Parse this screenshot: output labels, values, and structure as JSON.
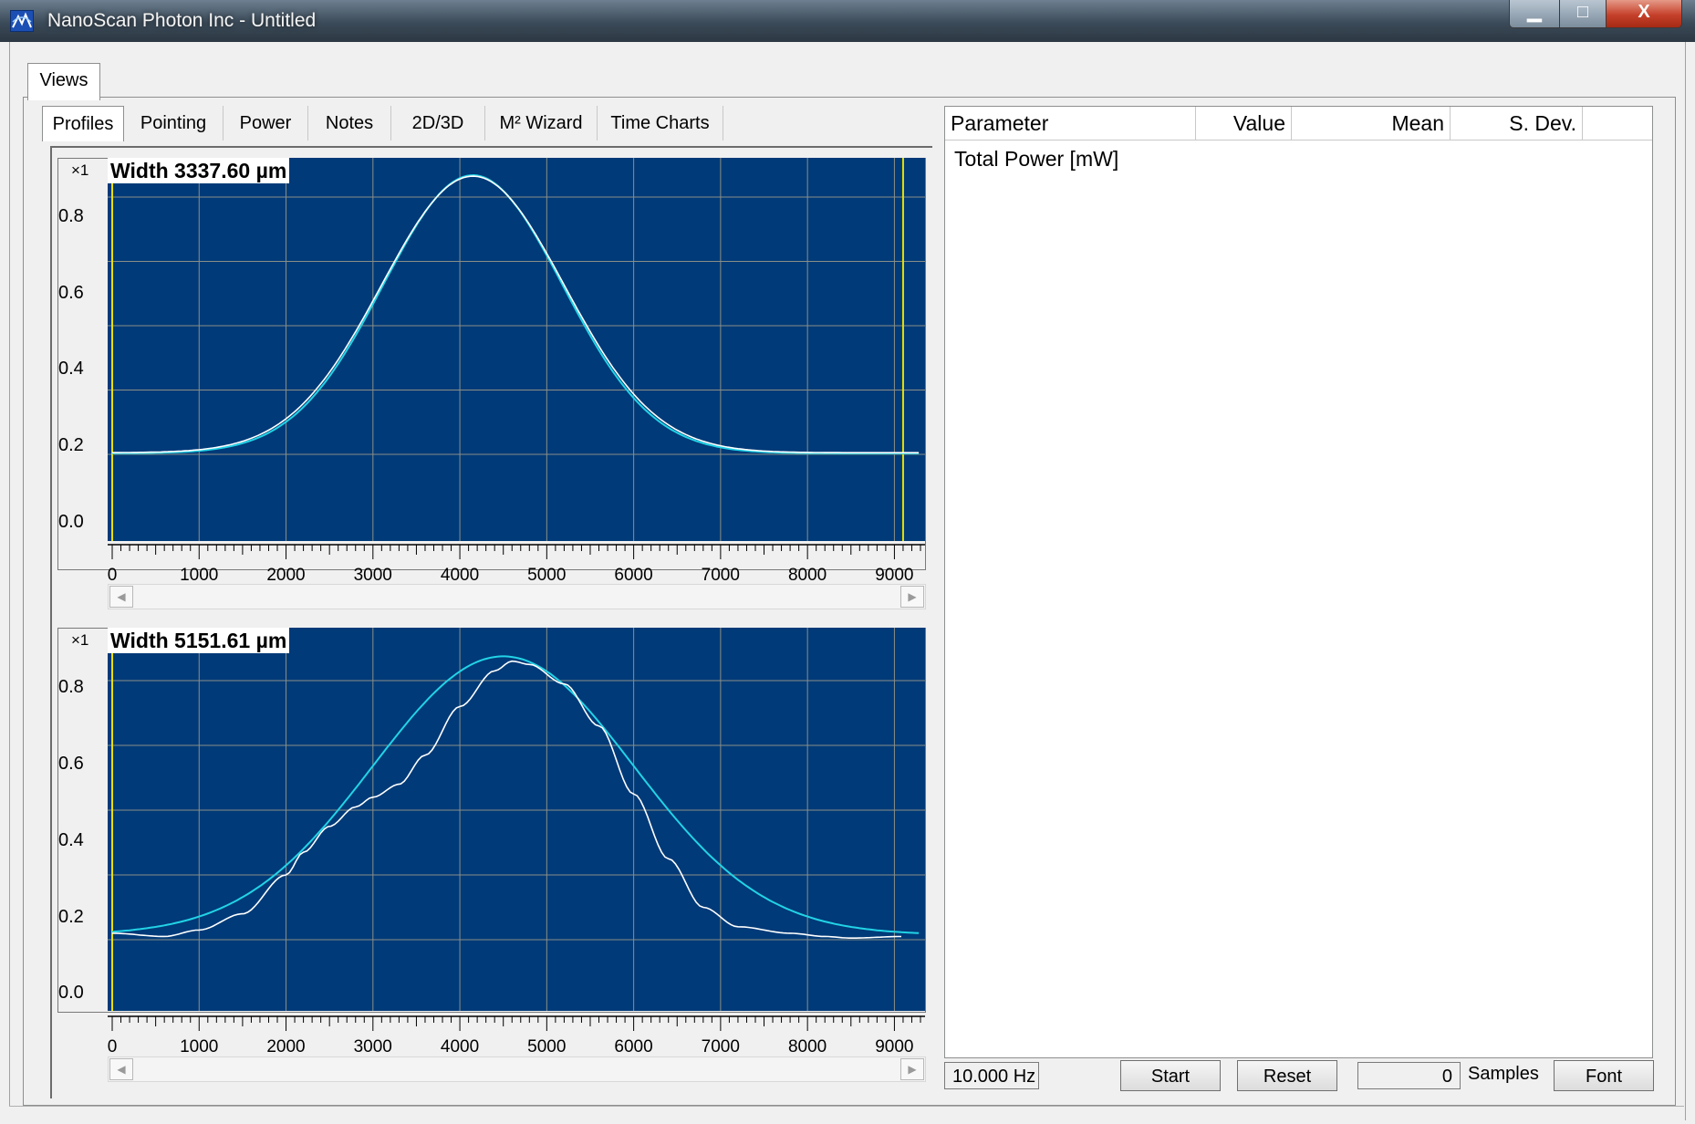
{
  "window": {
    "title": "NanoScan Photon Inc - Untitled",
    "min_glyph": "▁",
    "max_glyph": "□",
    "close_glyph": "X",
    "app_icon": "nanoscan-logo-icon"
  },
  "views_tab": {
    "label": "Views"
  },
  "subtabs": [
    {
      "label": "Profiles",
      "active": true
    },
    {
      "label": "Pointing"
    },
    {
      "label": "Power"
    },
    {
      "label": "Notes"
    },
    {
      "label": "2D/3D"
    },
    {
      "label": "M² Wizard"
    },
    {
      "label": "Time Charts"
    }
  ],
  "plots": [
    {
      "scale": "×1",
      "width_label": "Width 3337.60 µm",
      "y_ticks": [
        "0.8",
        "0.6",
        "0.4",
        "0.2",
        "0.0"
      ],
      "x_ticks": [
        "0",
        "1000",
        "2000",
        "3000",
        "4000",
        "5000",
        "6000",
        "7000",
        "8000",
        "9000"
      ],
      "background": "#003a78",
      "measured_color": "#ffffff",
      "fit_color": "#22d3e6",
      "marker_color": "#e8e000",
      "markers_x": [
        0,
        9100
      ],
      "measured": {
        "center": 4150,
        "sigma": 1050,
        "amplitude": 0.86,
        "baseline": 0.005
      },
      "fit": {
        "center": 4150,
        "sigma": 1030,
        "amplitude": 0.865,
        "baseline": 0.003
      }
    },
    {
      "scale": "×1",
      "width_label": "Width 5151.61 µm",
      "y_ticks": [
        "0.8",
        "0.6",
        "0.4",
        "0.2",
        "0.0"
      ],
      "x_ticks": [
        "0",
        "1000",
        "2000",
        "3000",
        "4000",
        "5000",
        "6000",
        "7000",
        "8000",
        "9000"
      ],
      "background": "#003a78",
      "measured_color": "#ffffff",
      "fit_color": "#22d3e6",
      "marker_color": "#e8e000",
      "markers_x": [
        0
      ],
      "measured_points": [
        [
          0,
          0.02
        ],
        [
          600,
          0.01
        ],
        [
          1000,
          0.03
        ],
        [
          1500,
          0.08
        ],
        [
          2000,
          0.2
        ],
        [
          2200,
          0.27
        ],
        [
          2500,
          0.35
        ],
        [
          2800,
          0.41
        ],
        [
          3000,
          0.44
        ],
        [
          3300,
          0.48
        ],
        [
          3600,
          0.57
        ],
        [
          4000,
          0.72
        ],
        [
          4400,
          0.83
        ],
        [
          4600,
          0.86
        ],
        [
          4800,
          0.85
        ],
        [
          5200,
          0.79
        ],
        [
          5600,
          0.66
        ],
        [
          6000,
          0.45
        ],
        [
          6400,
          0.25
        ],
        [
          6800,
          0.1
        ],
        [
          7200,
          0.04
        ],
        [
          7800,
          0.02
        ],
        [
          8200,
          0.01
        ],
        [
          8500,
          0.005
        ],
        [
          9100,
          0.01
        ]
      ],
      "fit": {
        "center": 4500,
        "sigma": 1500,
        "amplitude": 0.86,
        "baseline": 0.015
      }
    }
  ],
  "table": {
    "columns": [
      "Parameter",
      "Value",
      "Mean",
      "S. Dev."
    ],
    "rows": [
      {
        "parameter": "Total Power [mW]"
      }
    ]
  },
  "bottom": {
    "frequency": "10.000 Hz",
    "start_label": "Start",
    "reset_label": "Reset",
    "samples_value": "0",
    "samples_label": "Samples",
    "font_label": "Font"
  }
}
